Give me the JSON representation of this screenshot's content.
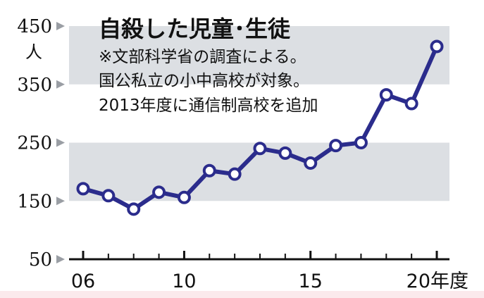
{
  "chart_data": {
    "type": "line",
    "title": "自殺した児童･生徒",
    "notes": [
      "※文部科学省の調査による。",
      "国公私立の小中高校が対象。",
      "2013年度に通信制高校を追加"
    ],
    "y_unit": "人",
    "x_unit": "度",
    "x_tick_labels": [
      {
        "x": 2006,
        "label": "06"
      },
      {
        "x": 2010,
        "label": "10"
      },
      {
        "x": 2015,
        "label": "15"
      },
      {
        "x": 2020,
        "label": "20年度"
      }
    ],
    "y_ticks": [
      50,
      150,
      250,
      350,
      450
    ],
    "ylim": [
      50,
      450
    ],
    "xlim": [
      2006,
      2020
    ],
    "bands": [
      [
        150,
        250
      ],
      [
        350,
        450
      ]
    ],
    "grid": false,
    "x": [
      2006,
      2007,
      2008,
      2009,
      2010,
      2011,
      2012,
      2013,
      2014,
      2015,
      2016,
      2017,
      2018,
      2019,
      2020
    ],
    "series": [
      {
        "values": [
          171,
          159,
          136,
          165,
          156,
          202,
          196,
          240,
          232,
          215,
          245,
          250,
          332,
          317,
          415
        ]
      }
    ]
  },
  "colors": {
    "line": "#2b2c8c",
    "marker_fill": "#ffffff",
    "band": "#dcdfe3",
    "axis": "#111111",
    "tick_arrow": "#9a9ea4",
    "bottom_strip": "#fbe9ec"
  }
}
